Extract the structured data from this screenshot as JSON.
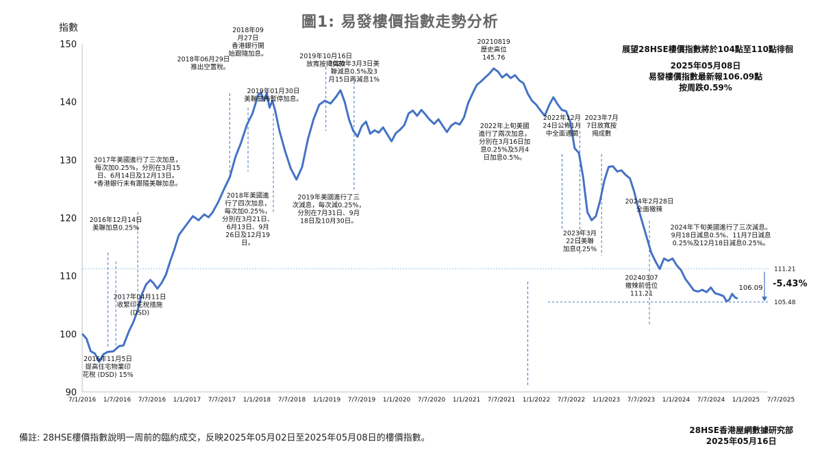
{
  "title": "圖1: 易發樓價指數走勢分析",
  "y_axis_title": "指數",
  "summary": {
    "line1": "展望28HSE樓價指數將於104點至110點徘徊",
    "line2": "2025年05月08日",
    "line3": "易發樓價指數最新報106.09點",
    "line4": "按周跌0.59%"
  },
  "footnote": "備註: 28HSE樓價指數說明一周前的臨約成交，反映2025年05月02日至2025年05月08日的樓價指數。",
  "credit": {
    "line1": "28HSE香港屋網數據研究部",
    "line2": "2025年05月16日"
  },
  "colors": {
    "line": "#4472C4",
    "guide": "#4472C4",
    "text": "#111111",
    "axis": "#bfbfbf"
  },
  "chart_data": {
    "type": "line",
    "ylim": [
      90,
      150
    ],
    "xlim": [
      "2016-07-01",
      "2025-10-01"
    ],
    "y_ticks": [
      "90",
      "100",
      "110",
      "120",
      "130",
      "140",
      "150"
    ],
    "x_ticks": [
      "7/1/2016",
      "1/7/2016",
      "7/7/2016",
      "1/1/2017",
      "7/7/2017",
      "1/1/2018",
      "7/7/2018",
      "1/1/2019",
      "7/7/2019",
      "1/1/2020",
      "7/7/2020",
      "1/1/2021",
      "7/7/2021",
      "1/1/2022",
      "7/7/2022",
      "1/1/2023",
      "7/7/2023",
      "1/1/2024",
      "7/7/2024",
      "1/1/2025",
      "7/7/2025"
    ],
    "points": [
      [
        "2016-07-01",
        100.0
      ],
      [
        "2016-07-22",
        99.2
      ],
      [
        "2016-08-12",
        97.0
      ],
      [
        "2016-09-02",
        96.6
      ],
      [
        "2016-09-23",
        95.2
      ],
      [
        "2016-10-14",
        96.5
      ],
      [
        "2016-11-04",
        96.9
      ],
      [
        "2016-12-02",
        97.0
      ],
      [
        "2016-12-30",
        97.9
      ],
      [
        "2017-01-20",
        98.0
      ],
      [
        "2017-02-17",
        100.5
      ],
      [
        "2017-03-10",
        102.0
      ],
      [
        "2017-03-31",
        104.0
      ],
      [
        "2017-04-21",
        106.8
      ],
      [
        "2017-05-12",
        108.5
      ],
      [
        "2017-06-02",
        109.3
      ],
      [
        "2017-06-16",
        108.8
      ],
      [
        "2017-07-07",
        107.8
      ],
      [
        "2017-07-28",
        108.8
      ],
      [
        "2017-08-18",
        110.2
      ],
      [
        "2017-09-08",
        112.5
      ],
      [
        "2017-09-29",
        114.6
      ],
      [
        "2017-10-20",
        117.0
      ],
      [
        "2017-11-10",
        118.0
      ],
      [
        "2017-12-01",
        119.0
      ],
      [
        "2017-12-29",
        120.3
      ],
      [
        "2018-01-26",
        119.6
      ],
      [
        "2018-02-23",
        120.6
      ],
      [
        "2018-03-16",
        120.1
      ],
      [
        "2018-04-06",
        121.0
      ],
      [
        "2018-05-04",
        122.8
      ],
      [
        "2018-06-01",
        125.0
      ],
      [
        "2018-06-29",
        127.0
      ],
      [
        "2018-07-27",
        130.5
      ],
      [
        "2018-08-24",
        133.0
      ],
      [
        "2018-09-21",
        136.0
      ],
      [
        "2018-10-19",
        138.0
      ],
      [
        "2018-11-16",
        141.2
      ],
      [
        "2018-11-30",
        141.6
      ],
      [
        "2018-12-14",
        140.2
      ],
      [
        "2018-12-28",
        141.5
      ],
      [
        "2019-01-11",
        139.0
      ],
      [
        "2019-01-25",
        140.2
      ],
      [
        "2019-02-08",
        138.5
      ],
      [
        "2019-03-01",
        135.0
      ],
      [
        "2019-03-29",
        131.5
      ],
      [
        "2019-04-26",
        128.5
      ],
      [
        "2019-05-24",
        126.6
      ],
      [
        "2019-06-21",
        128.8
      ],
      [
        "2019-07-19",
        133.5
      ],
      [
        "2019-08-16",
        137.0
      ],
      [
        "2019-09-13",
        139.5
      ],
      [
        "2019-10-11",
        140.2
      ],
      [
        "2019-11-08",
        139.7
      ],
      [
        "2019-12-06",
        140.9
      ],
      [
        "2019-12-27",
        142.0
      ],
      [
        "2020-01-17",
        140.0
      ],
      [
        "2020-02-07",
        137.0
      ],
      [
        "2020-02-28",
        135.0
      ],
      [
        "2020-03-20",
        134.0
      ],
      [
        "2020-04-10",
        135.8
      ],
      [
        "2020-05-01",
        136.6
      ],
      [
        "2020-05-22",
        134.5
      ],
      [
        "2020-06-12",
        135.1
      ],
      [
        "2020-07-03",
        134.7
      ],
      [
        "2020-07-24",
        135.6
      ],
      [
        "2020-08-14",
        134.4
      ],
      [
        "2020-09-04",
        133.2
      ],
      [
        "2020-09-25",
        134.6
      ],
      [
        "2020-10-16",
        135.2
      ],
      [
        "2020-11-06",
        136.0
      ],
      [
        "2020-11-27",
        138.0
      ],
      [
        "2020-12-18",
        138.5
      ],
      [
        "2021-01-08",
        137.6
      ],
      [
        "2021-01-29",
        138.6
      ],
      [
        "2021-02-19",
        137.8
      ],
      [
        "2021-03-12",
        136.9
      ],
      [
        "2021-04-02",
        136.2
      ],
      [
        "2021-04-23",
        137.0
      ],
      [
        "2021-05-14",
        135.9
      ],
      [
        "2021-06-04",
        134.8
      ],
      [
        "2021-06-25",
        135.9
      ],
      [
        "2021-07-16",
        136.4
      ],
      [
        "2021-08-06",
        136.1
      ],
      [
        "2021-08-27",
        137.3
      ],
      [
        "2021-09-17",
        139.8
      ],
      [
        "2021-10-08",
        141.4
      ],
      [
        "2021-10-29",
        142.9
      ],
      [
        "2021-11-19",
        143.5
      ],
      [
        "2021-12-10",
        144.2
      ],
      [
        "2021-12-31",
        144.9
      ],
      [
        "2022-01-21",
        145.76
      ],
      [
        "2022-02-11",
        145.2
      ],
      [
        "2022-03-04",
        144.2
      ],
      [
        "2022-03-25",
        144.8
      ],
      [
        "2022-04-15",
        144.1
      ],
      [
        "2022-05-06",
        144.6
      ],
      [
        "2022-05-27",
        143.7
      ],
      [
        "2022-06-17",
        143.2
      ],
      [
        "2022-07-08",
        141.4
      ],
      [
        "2022-07-29",
        140.2
      ],
      [
        "2022-08-19",
        139.5
      ],
      [
        "2022-09-09",
        138.5
      ],
      [
        "2022-09-30",
        137.6
      ],
      [
        "2022-10-21",
        139.4
      ],
      [
        "2022-11-11",
        140.8
      ],
      [
        "2022-12-02",
        139.6
      ],
      [
        "2022-12-23",
        138.6
      ],
      [
        "2023-01-13",
        138.4
      ],
      [
        "2023-02-03",
        136.5
      ],
      [
        "2023-02-24",
        132.0
      ],
      [
        "2023-03-17",
        131.2
      ],
      [
        "2023-04-07",
        127.0
      ],
      [
        "2023-04-28",
        121.0
      ],
      [
        "2023-05-19",
        119.6
      ],
      [
        "2023-06-09",
        120.3
      ],
      [
        "2023-06-30",
        123.0
      ],
      [
        "2023-07-21",
        126.5
      ],
      [
        "2023-08-11",
        128.8
      ],
      [
        "2023-09-01",
        128.9
      ],
      [
        "2023-09-22",
        128.0
      ],
      [
        "2023-10-13",
        128.2
      ],
      [
        "2023-11-03",
        127.4
      ],
      [
        "2023-11-24",
        126.8
      ],
      [
        "2023-12-15",
        124.5
      ],
      [
        "2024-01-05",
        121.5
      ],
      [
        "2024-01-26",
        119.0
      ],
      [
        "2024-02-16",
        116.5
      ],
      [
        "2024-03-08",
        114.0
      ],
      [
        "2024-03-29",
        112.5
      ],
      [
        "2024-04-19",
        111.2
      ],
      [
        "2024-05-10",
        113.0
      ],
      [
        "2024-05-31",
        112.6
      ],
      [
        "2024-06-21",
        113.0
      ],
      [
        "2024-07-12",
        111.8
      ],
      [
        "2024-08-02",
        111.0
      ],
      [
        "2024-08-23",
        109.5
      ],
      [
        "2024-09-13",
        108.5
      ],
      [
        "2024-10-04",
        107.5
      ],
      [
        "2024-10-25",
        107.3
      ],
      [
        "2024-11-15",
        107.6
      ],
      [
        "2024-12-06",
        107.2
      ],
      [
        "2024-12-27",
        108.0
      ],
      [
        "2025-01-17",
        107.0
      ],
      [
        "2025-02-07",
        106.8
      ],
      [
        "2025-02-28",
        106.5
      ],
      [
        "2025-03-14",
        105.6
      ],
      [
        "2025-03-28",
        105.9
      ],
      [
        "2025-04-11",
        106.9
      ],
      [
        "2025-04-25",
        106.3
      ],
      [
        "2025-05-08",
        106.09
      ]
    ],
    "reference_lines": [
      {
        "value": 111.21,
        "label": "111.21"
      },
      {
        "value": 105.48,
        "label": "105.48"
      }
    ],
    "change_label": "-5.43%",
    "last_value_label": "106.09",
    "annotations": [
      {
        "text": [
          "2016年11月5日",
          "提高住宅物業印",
          "花稅 (DSD) 15%"
        ],
        "date": "2016-11-05",
        "guide_from": 114,
        "guide_to": 97.5,
        "label_at": 95.3,
        "align": "middle"
      },
      {
        "text": [
          "2016年12月14日",
          "美聯加息0.25%"
        ],
        "date": "2016-12-14",
        "guide_from": 112.5,
        "guide_to": 98.0,
        "label_at": 119.3,
        "align": "middle"
      },
      {
        "text": [
          "2017年美國進行了三次加息，",
          "每次加0.25%，分別在3月15",
          "日、6月14日及12月13日。",
          "*香港銀行未有跟隨美聯加息。"
        ],
        "date": "2017-04-01",
        "guide_from": 121,
        "guide_to": 104,
        "label_at": 129.6,
        "align": "middle"
      },
      {
        "text": [
          "2017年04月11日",
          "收緊印花稅措施",
          "(DSD)"
        ],
        "date": "2017-04-11",
        "guide_from": null,
        "guide_to": null,
        "label_at": 106.0,
        "align": "middle"
      },
      {
        "text": [
          "2018年06月29日",
          "推出空置稅。"
        ],
        "date": "2018-06-29",
        "guide_from": 141.5,
        "guide_to": 127.5,
        "label_at": 147.0,
        "align": "end"
      },
      {
        "text": [
          "2018年09",
          "月27日",
          "香港銀行開",
          "始跟隨加息。"
        ],
        "date": "2018-09-27",
        "guide_from": 139,
        "guide_to": 128,
        "label_at": 152.0,
        "align": "middle"
      },
      {
        "text": [
          "2019年01月30日",
          "美聯宣佈暫停加息。"
        ],
        "date": "2019-01-30",
        "guide_from": 138,
        "guide_to": 121,
        "label_at": 141.5,
        "align": "middle"
      },
      {
        "text": [
          "2018年美國進",
          "行了四次加息，",
          "每次加0.25%，",
          "分別在3月21日、",
          "6月13日、9月",
          "26日及12月19",
          "日。"
        ],
        "date": "2018-09-26",
        "guide_from": null,
        "guide_to": null,
        "label_at": 123.5,
        "align": "middle"
      },
      {
        "text": [
          "2019年10月16日",
          "放寬按揭貸款"
        ],
        "date": "2019-10-16",
        "guide_from": 146,
        "guide_to": 135,
        "label_at": 147.5,
        "align": "middle"
      },
      {
        "text": [
          "2020年3月3日美",
          "聯減息0.5%及3",
          "月15日再減息1%"
        ],
        "date": "2020-03-03",
        "guide_from": 143.5,
        "guide_to": 124.5,
        "label_at": 146.2,
        "align": "middle"
      },
      {
        "text": [
          "2019年美國進行了三",
          "次減息，每次減0.25%，",
          "分別在7月31日、9月",
          "18日及10月30日。"
        ],
        "date": "2019-10-30",
        "guide_from": null,
        "guide_to": null,
        "label_at": 123.2,
        "align": "middle"
      },
      {
        "text": [
          "20210819",
          "歷史高位",
          "145.76"
        ],
        "date": "2022-01-21",
        "guide_from": null,
        "guide_to": null,
        "label_at": 150.0,
        "align": "middle"
      },
      {
        "text": [
          "2022年上旬美國",
          "進行了兩次加息，",
          "分別在3月16日加",
          "息0.25%及5月4",
          "日加息0.5%。"
        ],
        "date": "2022-03-16",
        "guide_from": null,
        "guide_to": null,
        "label_at": 135.5,
        "align": "middle"
      },
      {
        "text": [
          "2022年12月",
          "24日公佈1月",
          "中全面通關"
        ],
        "date": "2022-12-24",
        "guide_from": 131,
        "guide_to": 118,
        "label_at": 136.9,
        "align": "middle"
      },
      {
        "text": [
          "2023年3月",
          "22日美聯",
          "加息0.25%"
        ],
        "date": "2023-03-22",
        "guide_from": 135,
        "guide_to": 113.5,
        "label_at": 117.0,
        "align": "middle"
      },
      {
        "text": [
          "2023年7月",
          "7日放寬按",
          "揭成數"
        ],
        "date": "2023-07-07",
        "guide_from": 131,
        "guide_to": 113.5,
        "label_at": 136.9,
        "align": "middle"
      },
      {
        "text": [
          "2024年2月28日",
          "全面撤辣"
        ],
        "date": "2024-02-28",
        "guide_from": 119.5,
        "guide_to": 101.5,
        "label_at": 122.5,
        "align": "middle"
      },
      {
        "text": [
          "20240307",
          "撤辣前低位",
          "111.21"
        ],
        "date": "2024-01-20",
        "guide_from": null,
        "guide_to": null,
        "label_at": 109.3,
        "align": "middle"
      },
      {
        "text": [
          "2024年下旬美國進行了三次減息。",
          "9月18日減息0.5%、11月7日減息",
          "0.25%及12月18日減息0.25%。"
        ],
        "date": "2025-02-15",
        "guide_from": null,
        "guide_to": null,
        "label_at": 118.0,
        "align": "middle"
      }
    ],
    "extra_guides": [
      {
        "date": "2022-07-08",
        "from": 109,
        "to": 91
      }
    ]
  }
}
